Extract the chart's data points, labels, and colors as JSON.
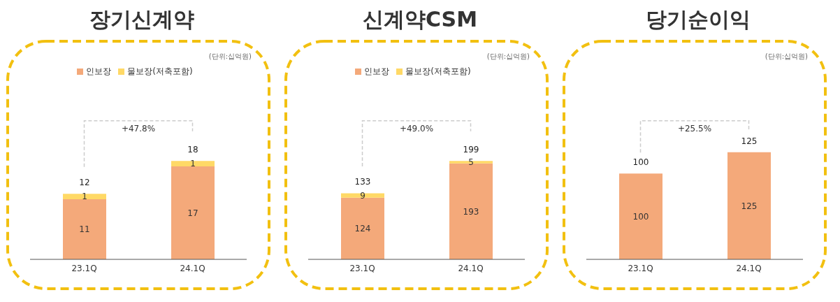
{
  "chart_data": [
    {
      "type": "bar",
      "title": "장기신계약",
      "categories": [
        "23.1Q",
        "24.1Q"
      ],
      "stacked": true,
      "data_labels": true,
      "legend": "top",
      "totals": [
        "12",
        "18"
      ],
      "annotations": [
        "(단위:십억원)",
        "+47.8%"
      ],
      "series": [
        {
          "name": "인보장",
          "color": "#f4a97a",
          "values": [
            11,
            17
          ]
        },
        {
          "name": "물보장(저축포함)",
          "color": "#ffd966",
          "values": [
            1,
            1
          ]
        }
      ]
    },
    {
      "type": "bar",
      "title": "신계약CSM",
      "categories": [
        "23.1Q",
        "24.1Q"
      ],
      "stacked": true,
      "data_labels": true,
      "legend": "top",
      "totals": [
        "133",
        "199"
      ],
      "annotations": [
        "(단위:십억원)",
        "+49.0%"
      ],
      "series": [
        {
          "name": "인보장",
          "color": "#f4a97a",
          "values": [
            124,
            193
          ]
        },
        {
          "name": "물보장(저축포함)",
          "color": "#ffd966",
          "values": [
            9,
            5
          ]
        }
      ]
    },
    {
      "type": "bar",
      "title": "당기순이익",
      "categories": [
        "23.1Q",
        "24.1Q"
      ],
      "stacked": true,
      "data_labels": true,
      "totals": [
        "100",
        "125"
      ],
      "annotations": [
        "(단위:십억원)",
        "+25.5%"
      ],
      "series": [
        {
          "color": "#f4a97a",
          "values": [
            100,
            125
          ]
        }
      ]
    }
  ]
}
